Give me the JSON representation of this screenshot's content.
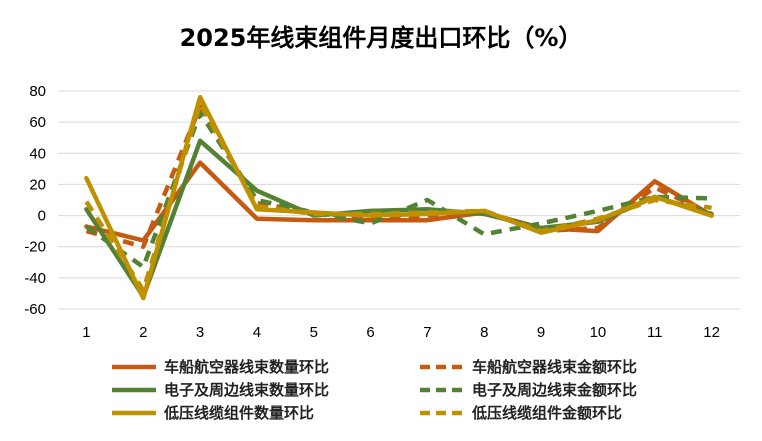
{
  "chart_data": {
    "type": "line",
    "title": "2025年线束组件月度出口环比（%）",
    "xlabel": "",
    "ylabel": "",
    "ylim": [
      -60,
      80
    ],
    "yticks": [
      80,
      60,
      40,
      20,
      0,
      -20,
      -40,
      -60
    ],
    "categories": [
      "1",
      "2",
      "3",
      "4",
      "5",
      "6",
      "7",
      "8",
      "9",
      "10",
      "11",
      "12"
    ],
    "grid": true,
    "legend_position": "bottom",
    "series": [
      {
        "name": "车船航空器线束数量环比",
        "color": "#c55a11",
        "style": "solid",
        "values": [
          -7,
          -16,
          34,
          -2,
          -3,
          -3,
          -3,
          2,
          -8,
          -10,
          22,
          0
        ]
      },
      {
        "name": "车船航空器线束金额环比",
        "color": "#c55a11",
        "style": "dashed",
        "values": [
          -10,
          -20,
          70,
          8,
          2,
          -2,
          0,
          3,
          -10,
          -8,
          18,
          1
        ]
      },
      {
        "name": "电子及周边线束数量环比",
        "color": "#548235",
        "style": "solid",
        "values": [
          4,
          -52,
          48,
          16,
          0,
          3,
          4,
          1,
          -8,
          -4,
          12,
          1
        ]
      },
      {
        "name": "电子及周边线束金额环比",
        "color": "#548235",
        "style": "dashed",
        "values": [
          -7,
          -33,
          66,
          10,
          2,
          -5,
          10,
          -12,
          -5,
          3,
          12,
          11
        ]
      },
      {
        "name": "低压线缆组件数量环比",
        "color": "#bf9000",
        "style": "solid",
        "values": [
          24,
          -53,
          76,
          4,
          2,
          0,
          1,
          3,
          -11,
          -3,
          12,
          0
        ]
      },
      {
        "name": "低压线缆组件金额环比",
        "color": "#bf9000",
        "style": "dashed",
        "values": [
          9,
          -48,
          72,
          6,
          1,
          1,
          2,
          3,
          -10,
          -2,
          10,
          5
        ]
      }
    ]
  }
}
